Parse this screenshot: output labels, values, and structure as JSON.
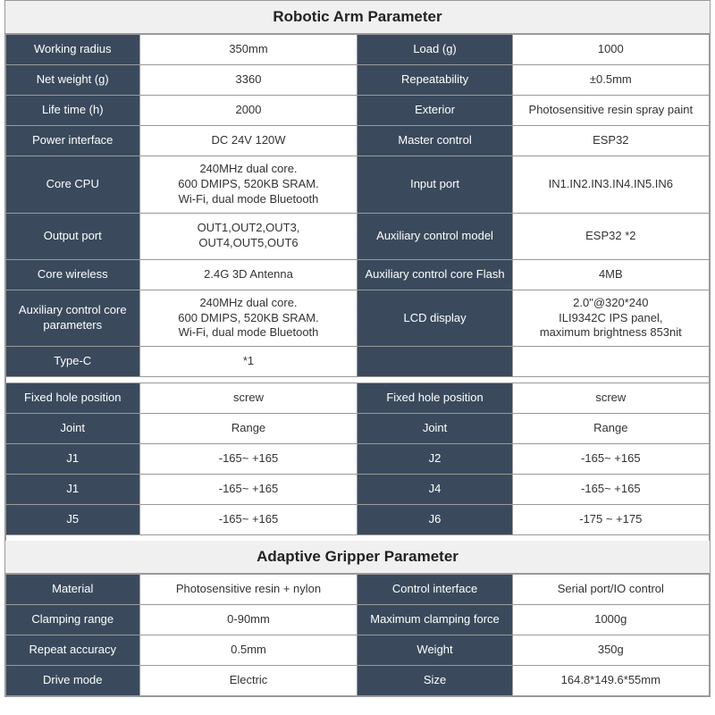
{
  "colors": {
    "dark_bg": "#3a4a5c",
    "dark_text": "#ffffff",
    "light_bg": "#ffffff",
    "light_text": "#333333",
    "border": "#999999",
    "header_bg": "#f0f0f0"
  },
  "sections": {
    "arm_title": "Robotic Arm Parameter",
    "gripper_title": "Adaptive Gripper Parameter"
  },
  "arm": [
    {
      "l1": "Working radius",
      "v1": "350mm",
      "l2": "Load (g)",
      "v2": "1000"
    },
    {
      "l1": "Net weight (g)",
      "v1": "3360",
      "l2": "Repeatability",
      "v2": "±0.5mm"
    },
    {
      "l1": "Life time (h)",
      "v1": "2000",
      "l2": "Exterior",
      "v2": "Photosensitive resin spray paint"
    },
    {
      "l1": "Power interface",
      "v1": "DC 24V 120W",
      "l2": "Master control",
      "v2": "ESP32"
    },
    {
      "l1": "Core CPU",
      "v1": "240MHz dual core.\n600 DMIPS, 520KB SRAM.\nWi-Fi, dual mode Bluetooth",
      "l2": "Input port",
      "v2": "IN1.IN2.IN3.IN4.IN5.IN6"
    },
    {
      "l1": "Output port",
      "v1": "OUT1,OUT2,OUT3,\nOUT4,OUT5,OUT6",
      "l2": "Auxiliary control model",
      "v2": "ESP32 *2"
    },
    {
      "l1": "Core wireless",
      "v1": "2.4G 3D Antenna",
      "l2": "Auxiliary control core Flash",
      "v2": "4MB"
    },
    {
      "l1": "Auxiliary control core parameters",
      "v1": "240MHz dual core.\n600 DMIPS, 520KB SRAM.\nWi-Fi, dual mode Bluetooth",
      "l2": "LCD display",
      "v2": "2.0\"@320*240\nILI9342C IPS panel,\nmaximum brightness 853nit"
    },
    {
      "l1": "Type-C",
      "v1": "*1",
      "l2": "",
      "v2": ""
    }
  ],
  "joints": [
    {
      "l1": "Fixed hole position",
      "v1": "screw",
      "l2": "Fixed hole position",
      "v2": "screw"
    },
    {
      "l1": "Joint",
      "v1": "Range",
      "l2": "Joint",
      "v2": "Range"
    },
    {
      "l1": "J1",
      "v1": "-165~ +165",
      "l2": "J2",
      "v2": "-165~ +165"
    },
    {
      "l1": "J1",
      "v1": "-165~ +165",
      "l2": "J4",
      "v2": "-165~ +165"
    },
    {
      "l1": "J5",
      "v1": "-165~ +165",
      "l2": "J6",
      "v2": "-175 ~ +175"
    }
  ],
  "gripper": [
    {
      "l1": "Material",
      "v1": "Photosensitive resin + nylon",
      "l2": "Control interface",
      "v2": "Serial port/IO control"
    },
    {
      "l1": "Clamping range",
      "v1": "0-90mm",
      "l2": "Maximum clamping force",
      "v2": "1000g"
    },
    {
      "l1": "Repeat accuracy",
      "v1": "0.5mm",
      "l2": "Weight",
      "v2": "350g"
    },
    {
      "l1": "Drive mode",
      "v1": "Electric",
      "l2": "Size",
      "v2": "164.8*149.6*55mm"
    }
  ]
}
